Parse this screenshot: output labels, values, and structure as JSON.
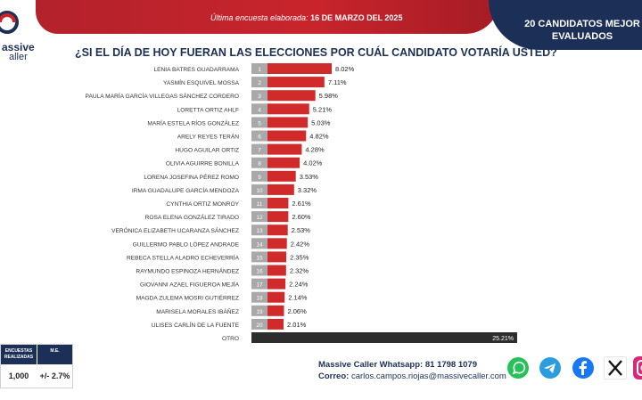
{
  "header": {
    "survey_date_label": "Última encuesta elaborada: ",
    "survey_date_value": "16 DE MARZO DEL 2025",
    "right_banner": "20 CANDIDATOS MEJOR EVALUADOS",
    "logo_line1": "assive",
    "logo_line2": "aller"
  },
  "chart_data": {
    "type": "bar",
    "orientation": "horizontal",
    "title": "¿SI EL DÍA DE HOY FUERAN LAS ELECCIONES POR CUÁL CANDIDATO VOTARÍA USTED?",
    "categories": [
      "LENIA BATRES GUADARRAMA",
      "YASMÍN ESQUIVEL MOSSA",
      "PAULA MARÍA GARCÍA VILLEGAS SÁNCHEZ CORDERO",
      "LORETTA ORTIZ AHLF",
      "MARÍA ESTELA RÍOS GONZÁLEZ",
      "ARELY REYES TERÁN",
      "HUGO AGUILAR ORTIZ",
      "OLIVIA AGUIRRE BONILLA",
      "LORENA JOSEFINA PÉREZ ROMO",
      "IRMA GUADALUPE GARCÍA MENDOZA",
      "CYNTHIA ORTIZ MONROY",
      "ROSA ELENA GONZÁLEZ TIRADO",
      "VERÓNICA ELIZABETH UCARANZA SÁNCHEZ",
      "GUILLERMO PABLO LÓPEZ ANDRADE",
      "REBECA STELLA ALADRO ECHEVERRÍA",
      "RAYMUNDO ESPINOZA HERNÁNDEZ",
      "GIOVANNI AZAEL FIGUEROA MEJÍA",
      "MAGDA ZULEMA MOSRI GUTIÉRREZ",
      "MARISELA MORALES IBÁÑEZ",
      "ULISES CARLÍN DE LA FUENTE",
      "OTRO"
    ],
    "ranks": [
      "1",
      "2",
      "3",
      "4",
      "5",
      "6",
      "7",
      "8",
      "9",
      "10",
      "11",
      "12",
      "13",
      "14",
      "15",
      "16",
      "17",
      "18",
      "19",
      "20",
      ""
    ],
    "values": [
      8.02,
      7.11,
      5.98,
      5.21,
      5.03,
      4.82,
      4.28,
      4.02,
      3.53,
      3.32,
      2.61,
      2.6,
      2.53,
      2.42,
      2.35,
      2.32,
      2.24,
      2.14,
      2.06,
      2.01,
      25.21
    ],
    "value_labels": [
      "8.02%",
      "7.11%",
      "5.98%",
      "5.21%",
      "5.03%",
      "4.82%",
      "4.28%",
      "4.02%",
      "3.53%",
      "3.32%",
      "2.61%",
      "2.60%",
      "2.53%",
      "2.42%",
      "2.35%",
      "2.32%",
      "2.24%",
      "2.14%",
      "2.06%",
      "2.01%",
      "25.21%"
    ],
    "bar_color": "#d12a2a",
    "other_color": "#2d2d2d",
    "rank_box_color": "#a9a9a9"
  },
  "footer": {
    "table_header_1": "ENCUESTAS\nREALIZADAS",
    "table_header_2": "M.E.",
    "table_value_1": "1,000",
    "table_value_2": "+/- 2.7%",
    "whatsapp_label": "Massive Caller Whatsapp:",
    "whatsapp_value": "81 1798 1079",
    "email_label": "Correo:",
    "email_value": "carlos.campos.riojas@massivecaller.com"
  },
  "social_icons": [
    "whatsapp-icon",
    "telegram-icon",
    "facebook-icon",
    "x-icon",
    "instagram-icon"
  ]
}
